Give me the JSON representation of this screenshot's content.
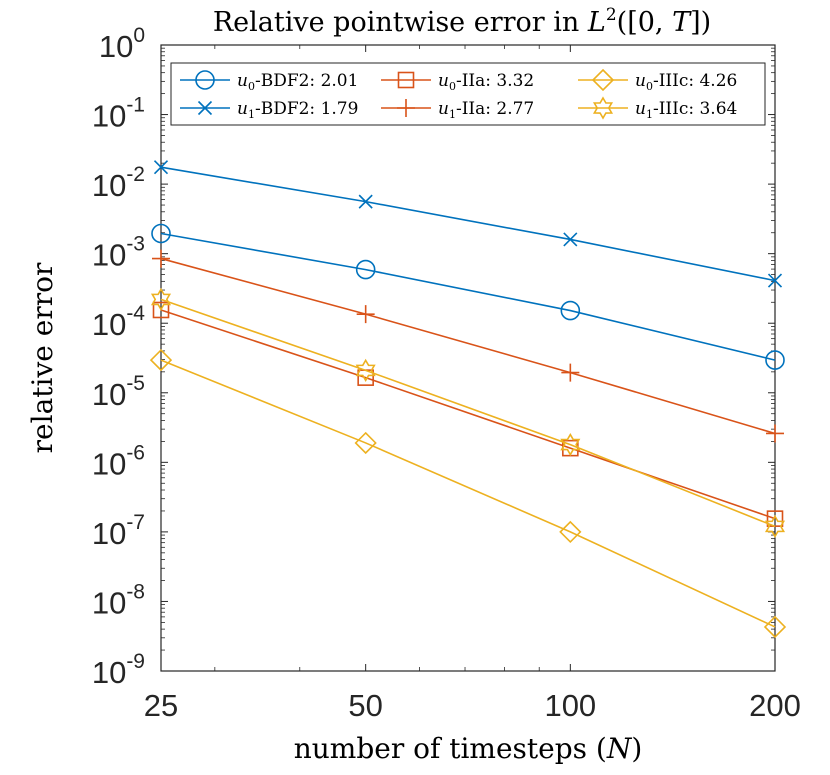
{
  "chart_data": {
    "type": "line",
    "title": "Relative pointwise error in L²([0,T])",
    "xlabel": "number of timesteps (N)",
    "ylabel": "relative error",
    "xscale": "log2",
    "yscale": "log10",
    "x": [
      25,
      50,
      100,
      200
    ],
    "xticks": [
      "25",
      "50",
      "100",
      "200"
    ],
    "xlim": [
      25,
      200
    ],
    "ylim": [
      1e-09,
      1
    ],
    "yticks": [
      {
        "exp": "-9"
      },
      {
        "exp": "-8"
      },
      {
        "exp": "-7"
      },
      {
        "exp": "-6"
      },
      {
        "exp": "-5"
      },
      {
        "exp": "-4"
      },
      {
        "exp": "-3"
      },
      {
        "exp": "-2"
      },
      {
        "exp": "-1"
      },
      {
        "exp": "0"
      }
    ],
    "legend_position": "top",
    "series": [
      {
        "name": "u0-BDF2",
        "rate": "2.01",
        "color": "#0072BD",
        "marker": "circle",
        "values": [
          0.00195,
          0.00059,
          0.000152,
          2.95e-05
        ]
      },
      {
        "name": "u1-BDF2",
        "rate": "1.79",
        "color": "#0072BD",
        "marker": "x",
        "values": [
          0.0175,
          0.0056,
          0.0016,
          0.00041
        ]
      },
      {
        "name": "u0-IIa",
        "rate": "3.32",
        "color": "#D95319",
        "marker": "square",
        "values": [
          0.000155,
          1.65e-05,
          1.6e-06,
          1.55e-07
        ]
      },
      {
        "name": "u1-IIa",
        "rate": "2.77",
        "color": "#D95319",
        "marker": "plus",
        "values": [
          0.00085,
          0.000135,
          1.95e-05,
          2.6e-06
        ]
      },
      {
        "name": "u0-IIIc",
        "rate": "4.26",
        "color": "#EDB120",
        "marker": "diamond",
        "values": [
          2.95e-05,
          1.9e-06,
          1e-07,
          4.3e-09
        ]
      },
      {
        "name": "u1-IIIc",
        "rate": "3.64",
        "color": "#EDB120",
        "marker": "hexagram",
        "values": [
          0.00022,
          2.1e-05,
          1.8e-06,
          1.2e-07
        ]
      }
    ]
  }
}
